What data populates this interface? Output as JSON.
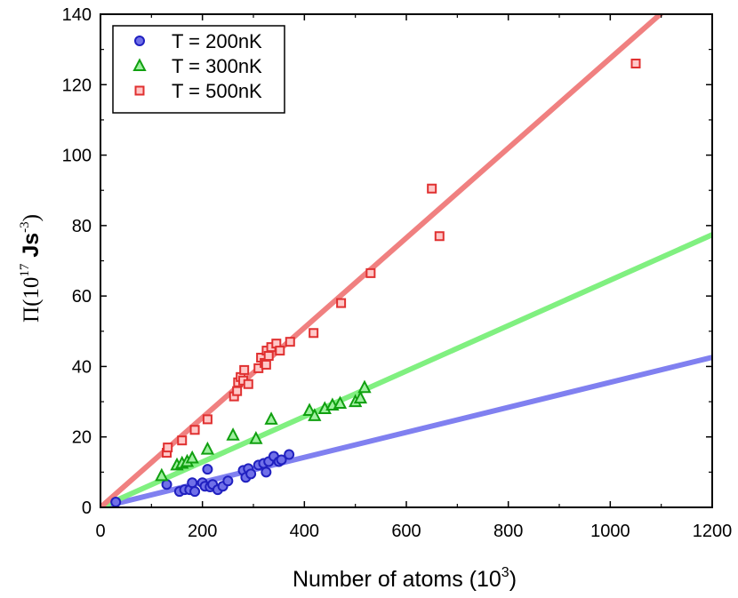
{
  "chart_data": {
    "type": "scatter",
    "xlabel": "Number of atoms (10",
    "xlabel_sup": "3",
    "xlabel_end": ")",
    "ylabel_pi": "Π",
    "ylabel_open": "(10",
    "ylabel_exp": "17",
    "ylabel_unit": " Js",
    "ylabel_unit_exp": "-3",
    "ylabel_close": ")",
    "xlim": [
      0,
      1200
    ],
    "ylim": [
      0,
      140
    ],
    "x_ticks": [
      "0",
      "200",
      "400",
      "600",
      "800",
      "1000",
      "1200"
    ],
    "x_tick_values": [
      0,
      200,
      400,
      600,
      800,
      1000,
      1200
    ],
    "y_ticks": [
      "0",
      "20",
      "40",
      "60",
      "80",
      "100",
      "120",
      "140"
    ],
    "y_tick_values": [
      0,
      20,
      40,
      60,
      80,
      100,
      120,
      140
    ],
    "legend_position": "top-left",
    "series": [
      {
        "name": "T = 200nK",
        "marker": "circle",
        "color": "#2020c0",
        "line_color": "#8080f0",
        "fit_slope": 0.0355,
        "points": [
          [
            30,
            1.5
          ],
          [
            130,
            6.5
          ],
          [
            155,
            4.5
          ],
          [
            165,
            5
          ],
          [
            175,
            5
          ],
          [
            180,
            7
          ],
          [
            185,
            4.5
          ],
          [
            200,
            7
          ],
          [
            205,
            6
          ],
          [
            210,
            10.8
          ],
          [
            215,
            5.8
          ],
          [
            220,
            6.5
          ],
          [
            230,
            5
          ],
          [
            240,
            6
          ],
          [
            250,
            7.5
          ],
          [
            280,
            10.5
          ],
          [
            285,
            8.5
          ],
          [
            290,
            11
          ],
          [
            295,
            9.5
          ],
          [
            310,
            12
          ],
          [
            320,
            12.5
          ],
          [
            325,
            10
          ],
          [
            330,
            13
          ],
          [
            340,
            14.5
          ],
          [
            350,
            13
          ],
          [
            355,
            13.5
          ],
          [
            370,
            15
          ]
        ]
      },
      {
        "name": "T = 300nK",
        "marker": "triangle",
        "color": "#10a010",
        "line_color": "#80f080",
        "fit_slope": 0.0645,
        "points": [
          [
            120,
            9
          ],
          [
            150,
            12
          ],
          [
            160,
            12.5
          ],
          [
            170,
            13
          ],
          [
            180,
            14
          ],
          [
            210,
            16.5
          ],
          [
            260,
            20.5
          ],
          [
            305,
            19.5
          ],
          [
            335,
            25
          ],
          [
            410,
            27.5
          ],
          [
            420,
            26
          ],
          [
            440,
            28
          ],
          [
            455,
            29
          ],
          [
            470,
            29.5
          ],
          [
            500,
            30
          ],
          [
            510,
            31
          ],
          [
            518,
            34
          ]
        ]
      },
      {
        "name": "T = 500nK",
        "marker": "square",
        "color": "#e03030",
        "line_color": "#f08080",
        "fit_slope": 0.1275,
        "points": [
          [
            130,
            15.5
          ],
          [
            132,
            17
          ],
          [
            160,
            19
          ],
          [
            185,
            22
          ],
          [
            210,
            25
          ],
          [
            262,
            31.5
          ],
          [
            268,
            33
          ],
          [
            270,
            35.5
          ],
          [
            275,
            37
          ],
          [
            280,
            36
          ],
          [
            282,
            39
          ],
          [
            290,
            35
          ],
          [
            310,
            39.5
          ],
          [
            315,
            42.5
          ],
          [
            322,
            41
          ],
          [
            325,
            40.5
          ],
          [
            326,
            44.5
          ],
          [
            330,
            43
          ],
          [
            335,
            45.5
          ],
          [
            345,
            46.5
          ],
          [
            352,
            44.5
          ],
          [
            372,
            47
          ],
          [
            418,
            49.5
          ],
          [
            472,
            58
          ],
          [
            530,
            66.5
          ],
          [
            650,
            90.5
          ],
          [
            665,
            77
          ],
          [
            1050,
            126
          ]
        ]
      }
    ]
  }
}
